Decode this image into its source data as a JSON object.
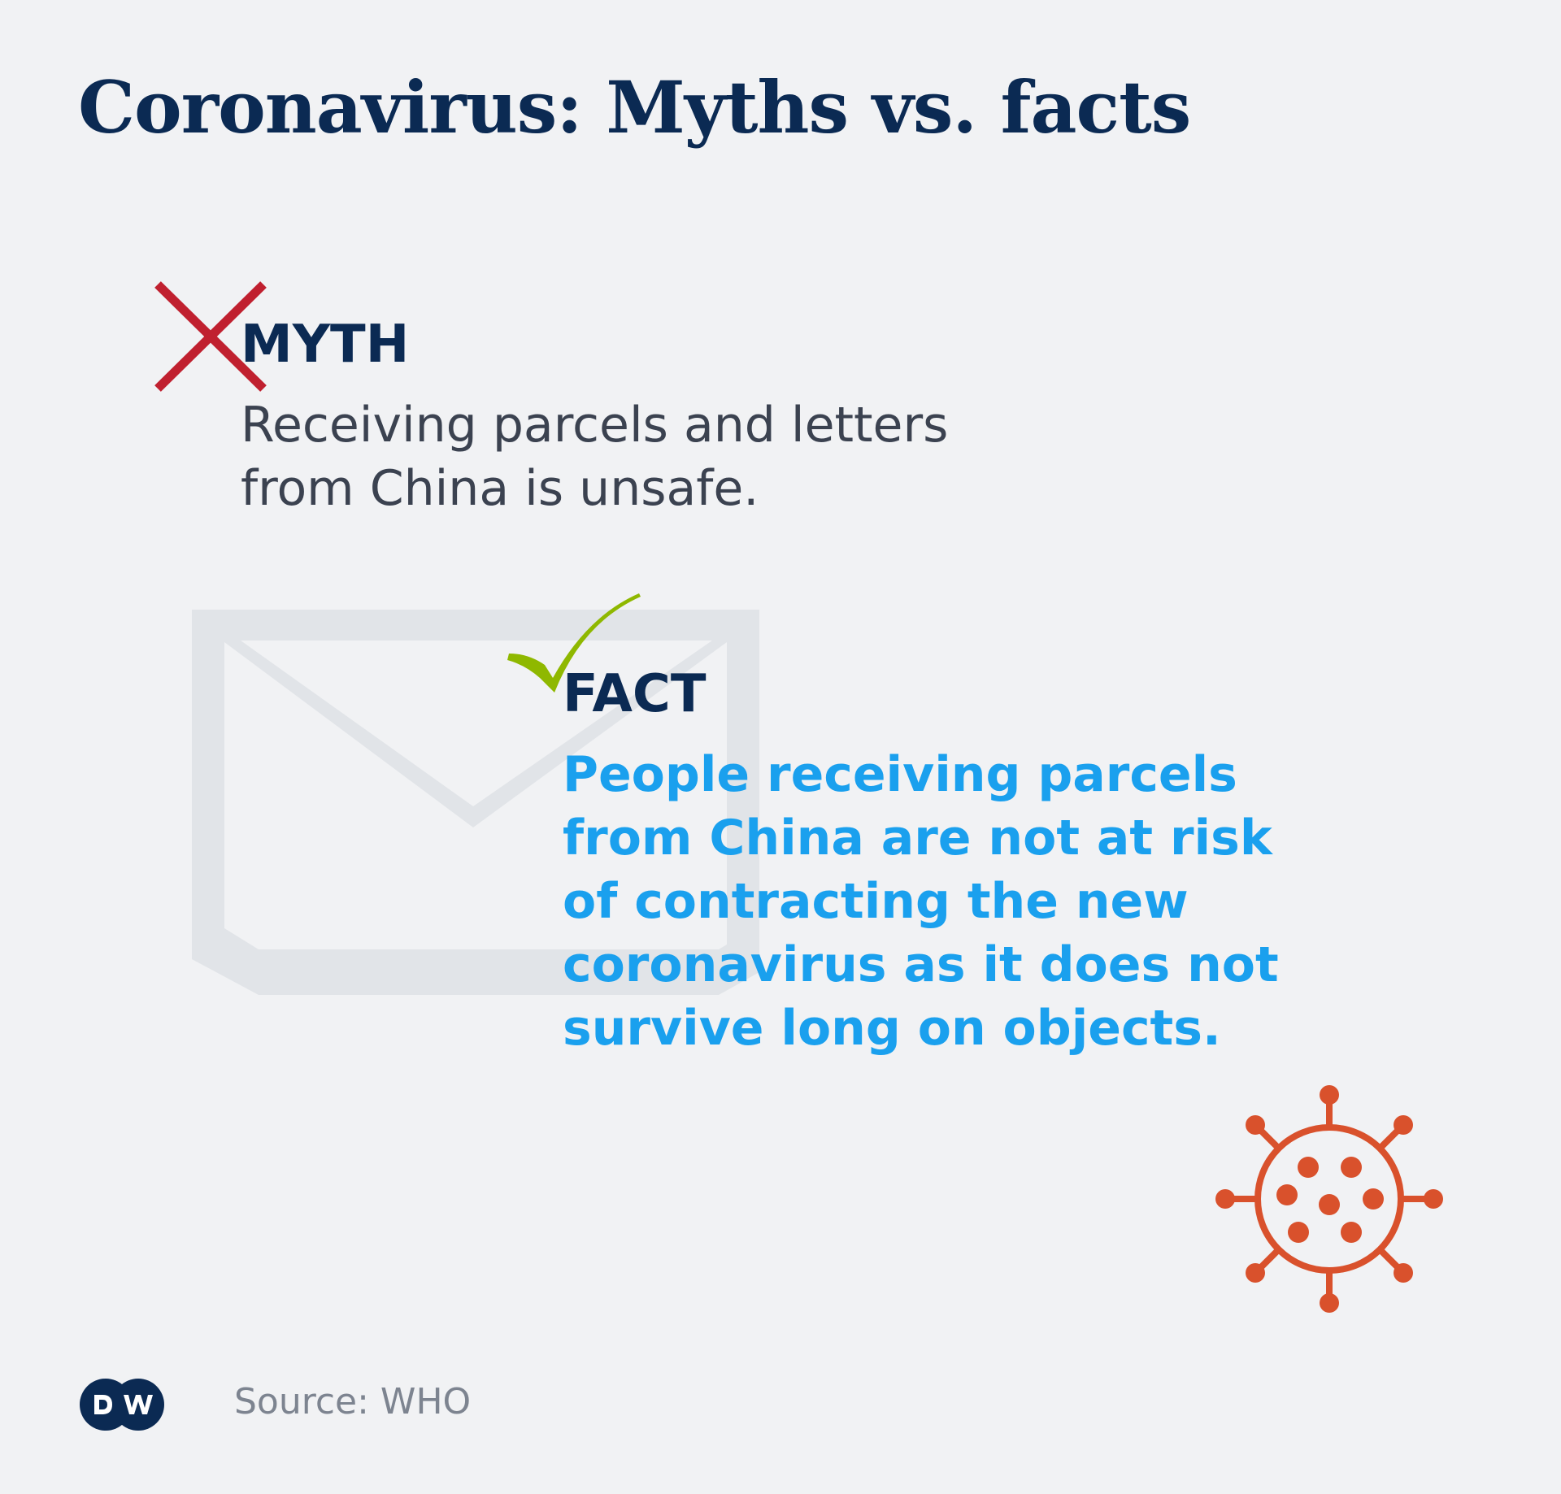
{
  "title": "Coronavirus: Myths vs. facts",
  "myth": {
    "label": "MYTH",
    "lines": [
      "Receiving parcels and letters",
      "from China is unsafe."
    ],
    "icon": "cross-icon",
    "icon_color": "#c0202f"
  },
  "fact": {
    "label": "FACT",
    "lines": [
      "People receiving parcels",
      "from China are not at risk",
      "of contracting the new",
      "coronavirus as it does not",
      "survive long on objects."
    ],
    "icon": "checkmark-icon",
    "icon_color": "#8fb800",
    "text_color": "#1aa0ee"
  },
  "illustrations": {
    "envelope": "envelope-icon",
    "envelope_color": "#e1e4e8",
    "virus": "virus-icon",
    "virus_color": "#d9512c"
  },
  "footer": {
    "logo_text": "DW",
    "source": "Source: WHO"
  },
  "colors": {
    "background": "#f1f2f4",
    "heading": "#0b2a53",
    "body_text": "#3b4250"
  }
}
